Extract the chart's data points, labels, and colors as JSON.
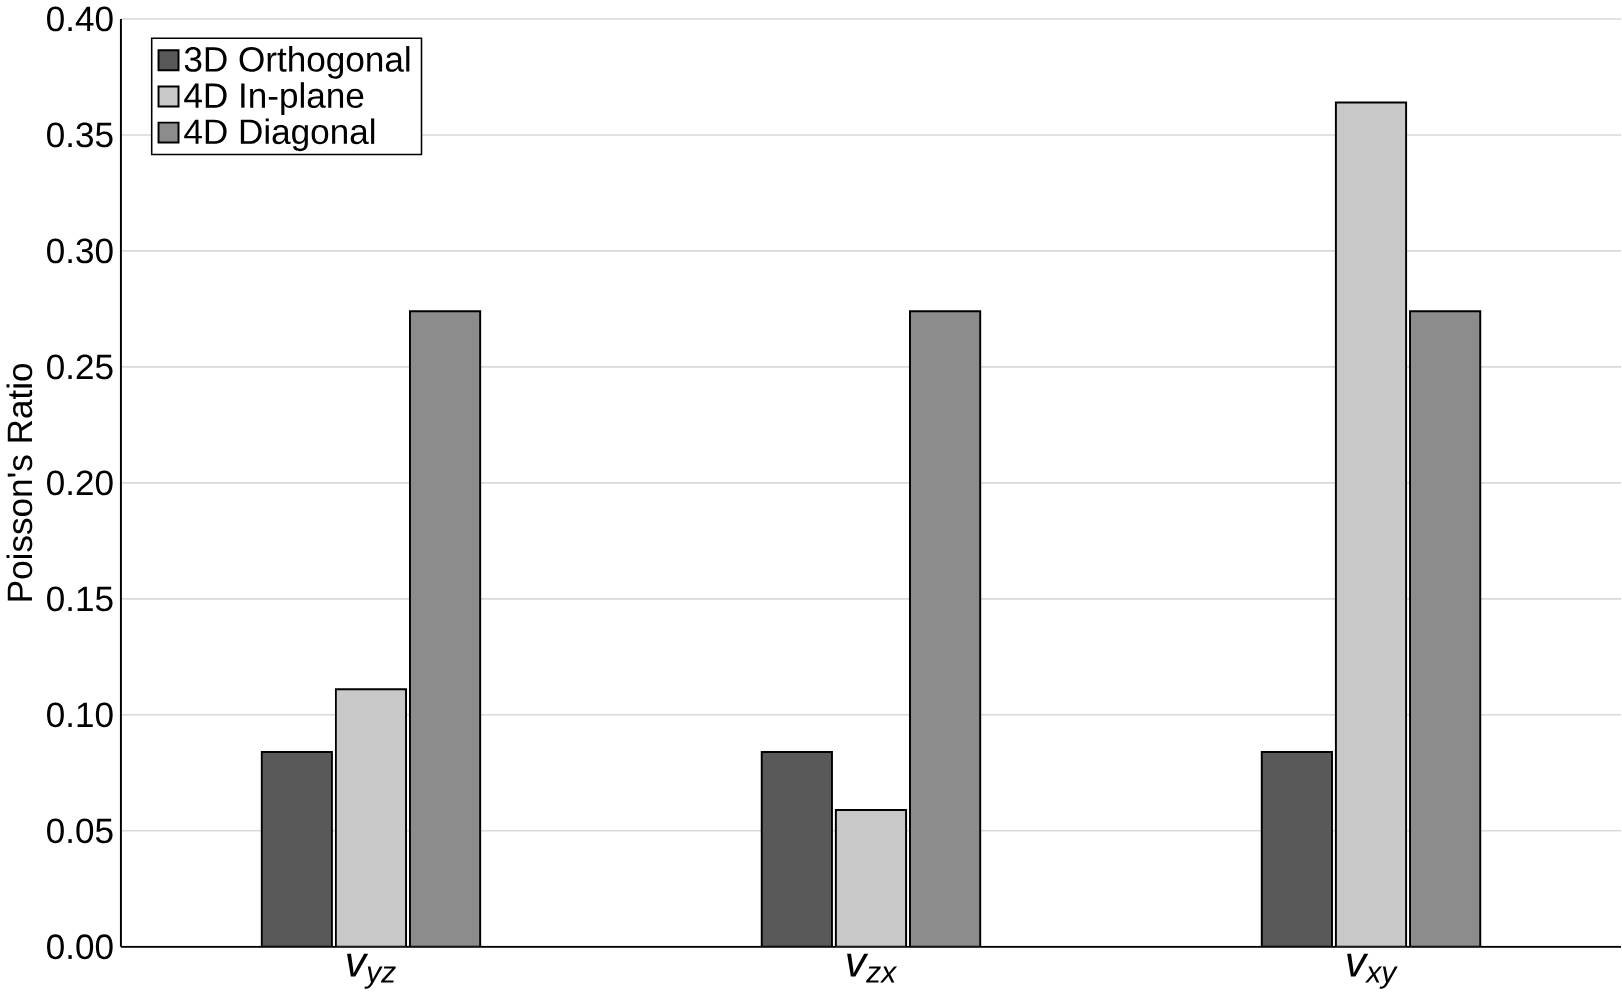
{
  "chart_data": {
    "type": "bar",
    "ylabel": "Poisson's Ratio",
    "categories": [
      "v$_{yz}$",
      "v$_{zx}$",
      "v$_{xy}$"
    ],
    "series": [
      {
        "name": "3D Orthogonal",
        "color": "#595959",
        "values": [
          0.084,
          0.084,
          0.084
        ]
      },
      {
        "name": "4D In-plane",
        "color": "#c8c8c8",
        "values": [
          0.111,
          0.059,
          0.364
        ]
      },
      {
        "name": "4D Diagonal",
        "color": "#8c8c8c",
        "values": [
          0.274,
          0.274,
          0.274
        ]
      }
    ],
    "ylim": [
      0,
      0.4
    ],
    "yticks": [
      {
        "value": 0,
        "label": "0.00"
      },
      {
        "value": 0.05,
        "label": "0.05"
      },
      {
        "value": 0.1,
        "label": "0.10"
      },
      {
        "value": 0.15,
        "label": "0.15"
      },
      {
        "value": 0.2,
        "label": "0.20"
      },
      {
        "value": 0.25,
        "label": "0.25"
      },
      {
        "value": 0.3,
        "label": "0.30"
      },
      {
        "value": 0.35,
        "label": "0.35"
      },
      {
        "value": 0.4,
        "label": "0.40"
      }
    ],
    "grid": "y",
    "legend": "top left"
  }
}
